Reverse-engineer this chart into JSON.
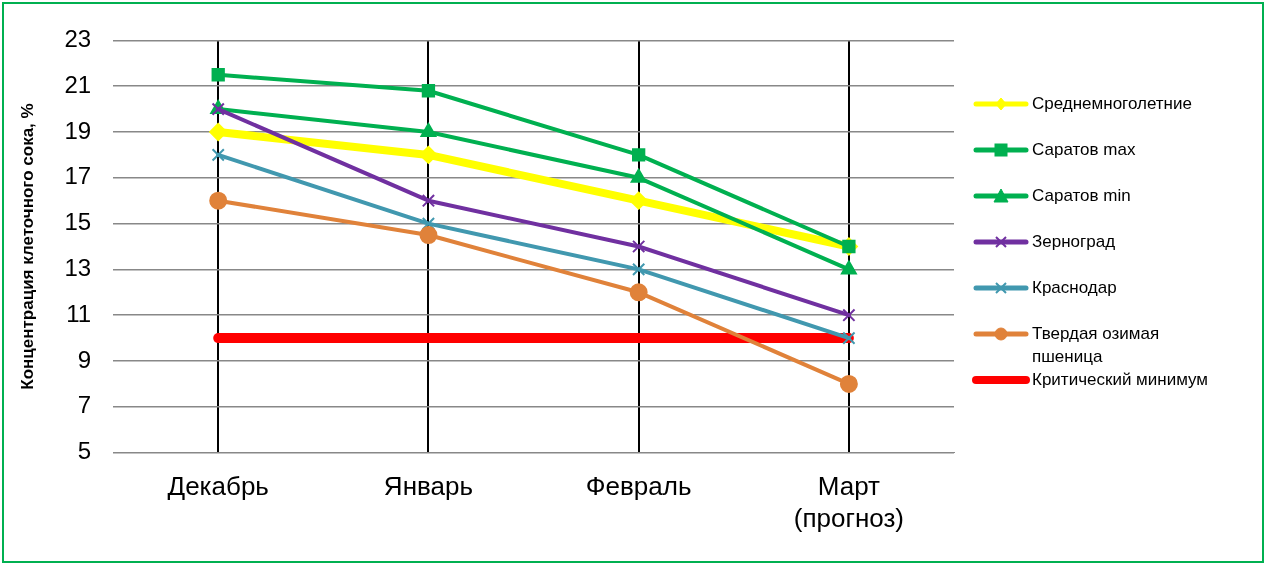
{
  "chart_data": {
    "type": "line",
    "ylabel": "Концентрация клеточного сока, %",
    "categories": [
      "Декабрь",
      "Январь",
      "Февраль",
      "Март (прогноз)"
    ],
    "ylim": [
      5,
      23
    ],
    "yticks": [
      5,
      7,
      9,
      11,
      13,
      15,
      17,
      19,
      21,
      23
    ],
    "grid": true,
    "legend": "right",
    "series": [
      {
        "name": "Среднемноголетние",
        "color": "#ffff00",
        "marker": "diamond",
        "values": [
          19,
          18,
          16,
          14
        ]
      },
      {
        "name": "Саратов max",
        "color": "#00b050",
        "marker": "square",
        "values": [
          21.5,
          20.8,
          18,
          14
        ]
      },
      {
        "name": "Саратов min",
        "color": "#00b050",
        "marker": "triangle",
        "values": [
          20,
          19,
          17,
          13
        ]
      },
      {
        "name": "Зерноград",
        "color": "#7030a0",
        "marker": "cross",
        "values": [
          20,
          16,
          14,
          11
        ]
      },
      {
        "name": "Краснодар",
        "color": "#4198af",
        "marker": "cross",
        "values": [
          18,
          15,
          13,
          10
        ]
      },
      {
        "name": "Твердая озимая пшеница",
        "color": "#e0823a",
        "marker": "circle",
        "values": [
          16,
          14.5,
          12,
          8
        ]
      },
      {
        "name": "Критический минимум",
        "color": "#ff0000",
        "marker": "none",
        "values": [
          10,
          10,
          10,
          10
        ]
      }
    ]
  }
}
